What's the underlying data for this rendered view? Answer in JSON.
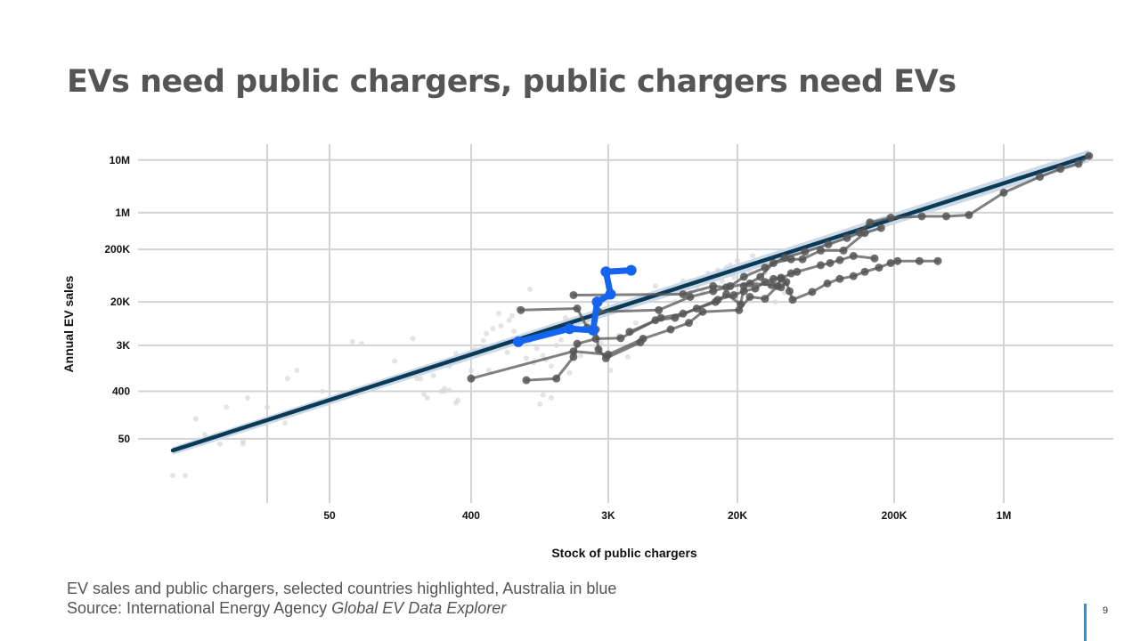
{
  "slide": {
    "title": "EVs need public chargers, public chargers need EVs",
    "caption_line1": "EV sales and public chargers, selected countries highlighted, Australia in blue",
    "source_prefix": "Source: International Energy Agency ",
    "source_title": "Global EV Data Explorer",
    "page_number": "9"
  },
  "colors": {
    "australia": "#1464f0",
    "highlighted": "#555555",
    "background_points": "#d9d9d9",
    "trend_line": "#0b3a57",
    "trend_band": "#c6d6e6",
    "grid": "#d3d3d3",
    "page_bar": "#1a9bd7"
  },
  "chart_data": {
    "type": "scatter",
    "title": "",
    "xlabel": "Stock of public chargers",
    "ylabel": "Annual EV sales",
    "x_scale": "log10",
    "y_scale": "log10",
    "xlim": [
      3,
      5000000
    ],
    "ylim": [
      3,
      20000000
    ],
    "grid": true,
    "legend": "none",
    "x_ticks": [
      {
        "value": 50,
        "label": "50"
      },
      {
        "value": 400,
        "label": "400"
      },
      {
        "value": 3000,
        "label": "3K"
      },
      {
        "value": 20000,
        "label": "20K"
      },
      {
        "value": 200000,
        "label": "200K"
      },
      {
        "value": 1000000,
        "label": "1M"
      }
    ],
    "x_grid_extra": [
      20
    ],
    "y_ticks": [
      {
        "value": 50,
        "label": "50"
      },
      {
        "value": 400,
        "label": "400"
      },
      {
        "value": 3000,
        "label": "3K"
      },
      {
        "value": 20000,
        "label": "20K"
      },
      {
        "value": 200000,
        "label": "200K"
      },
      {
        "value": 1000000,
        "label": "1M"
      },
      {
        "value": 10000000,
        "label": "10M"
      }
    ],
    "trend_line": {
      "x": [
        5,
        3500000
      ],
      "y": [
        30,
        12000000
      ]
    },
    "series": [
      {
        "name": "Australia",
        "role": "australia",
        "points": [
          [
            800,
            3500
          ],
          [
            1700,
            6200
          ],
          [
            2400,
            5800
          ],
          [
            2550,
            20000
          ],
          [
            3100,
            28000
          ],
          [
            2900,
            75000
          ],
          [
            4200,
            80000
          ]
        ]
      },
      {
        "role": "highlighted",
        "points": [
          [
            830,
            14000
          ],
          [
            1900,
            15000
          ],
          [
            2200,
            6500
          ],
          [
            2500,
            6000
          ],
          [
            2600,
            2500
          ],
          [
            2900,
            1700
          ],
          [
            4800,
            3400
          ]
        ]
      },
      {
        "role": "highlighted",
        "points": [
          [
            900,
            650
          ],
          [
            1400,
            700
          ],
          [
            1800,
            1800
          ],
          [
            1900,
            3200
          ],
          [
            2500,
            4000
          ],
          [
            3600,
            4100
          ],
          [
            6500,
            10000
          ],
          [
            9000,
            12000
          ],
          [
            14500,
            20000
          ],
          [
            17000,
            28000
          ],
          [
            21000,
            18000
          ],
          [
            22000,
            40000
          ],
          [
            28000,
            60000
          ],
          [
            34000,
            110000
          ],
          [
            44000,
            130000
          ],
          [
            52000,
            130000
          ],
          [
            68000,
            190000
          ],
          [
            95000,
            190000
          ],
          [
            130000,
            410000
          ],
          [
            165000,
            510000
          ]
        ]
      },
      {
        "role": "highlighted",
        "points": [
          [
            400,
            700
          ],
          [
            1800,
            2300
          ],
          [
            3000,
            2000
          ],
          [
            5000,
            4000
          ],
          [
            7500,
            6000
          ],
          [
            9800,
            8000
          ],
          [
            12000,
            13000
          ],
          [
            20500,
            14000
          ],
          [
            24000,
            25000
          ],
          [
            30000,
            23000
          ],
          [
            36000,
            40000
          ],
          [
            38000,
            55000
          ],
          [
            44000,
            70000
          ],
          [
            48000,
            75000
          ],
          [
            68000,
            100000
          ],
          [
            78000,
            110000
          ],
          [
            90000,
            125000
          ],
          [
            110000,
            150000
          ],
          [
            150000,
            135000
          ]
        ]
      },
      {
        "role": "highlighted",
        "points": [
          [
            2600,
            13000
          ],
          [
            6300,
            14000
          ],
          [
            10000,
            25000
          ],
          [
            14000,
            32000
          ],
          [
            18000,
            40000
          ],
          [
            22000,
            60000
          ],
          [
            30000,
            90000
          ],
          [
            40000,
            140000
          ],
          [
            54000,
            180000
          ],
          [
            76000,
            250000
          ],
          [
            100000,
            330000
          ],
          [
            120000,
            420000
          ],
          [
            140000,
            650000
          ],
          [
            190000,
            800000
          ],
          [
            300000,
            850000
          ],
          [
            430000,
            850000
          ],
          [
            600000,
            900000
          ],
          [
            1000000,
            2400000
          ],
          [
            1700000,
            4800000
          ],
          [
            2300000,
            6800000
          ],
          [
            3000000,
            8500000
          ],
          [
            3500000,
            12000000
          ]
        ]
      },
      {
        "role": "highlighted",
        "points": [
          [
            1800,
            27000
          ],
          [
            9000,
            28000
          ],
          [
            14000,
            40000
          ],
          [
            17000,
            38000
          ],
          [
            24000,
            45000
          ],
          [
            33000,
            42000
          ],
          [
            38000,
            38000
          ],
          [
            41000,
            48000
          ],
          [
            43000,
            32000
          ],
          [
            45000,
            22000
          ],
          [
            60000,
            31000
          ],
          [
            75000,
            45000
          ],
          [
            90000,
            55000
          ],
          [
            110000,
            62000
          ],
          [
            130000,
            75000
          ],
          [
            160000,
            90000
          ],
          [
            190000,
            110000
          ],
          [
            210000,
            120000
          ],
          [
            290000,
            120000
          ],
          [
            380000,
            120000
          ]
        ]
      },
      {
        "role": "highlighted",
        "points": [
          [
            4100,
            5400
          ],
          [
            6000,
            9000
          ],
          [
            8000,
            10000
          ],
          [
            11000,
            15000
          ],
          [
            15000,
            22000
          ],
          [
            19000,
            27000
          ],
          [
            22000,
            32000
          ],
          [
            26000,
            36000
          ],
          [
            30000,
            48000
          ],
          [
            34000,
            55000
          ],
          [
            38000,
            58000
          ]
        ]
      }
    ],
    "background_points": [
      [
        5,
        10
      ],
      [
        6,
        10
      ],
      [
        7,
        120
      ],
      [
        8,
        60
      ],
      [
        10,
        40
      ],
      [
        11,
        200
      ],
      [
        14,
        40
      ],
      [
        14,
        45
      ],
      [
        15,
        300
      ],
      [
        20,
        200
      ],
      [
        26,
        100
      ],
      [
        27,
        700
      ],
      [
        31,
        1000
      ],
      [
        45,
        400
      ],
      [
        70,
        3500
      ],
      [
        80,
        3200
      ],
      [
        130,
        1500
      ],
      [
        170,
        4000
      ],
      [
        180,
        700
      ],
      [
        190,
        700
      ],
      [
        200,
        350
      ],
      [
        210,
        300
      ],
      [
        230,
        800
      ],
      [
        260,
        400
      ],
      [
        270,
        400
      ],
      [
        270,
        450
      ],
      [
        290,
        420
      ],
      [
        290,
        1200
      ],
      [
        300,
        1600
      ],
      [
        320,
        2100
      ],
      [
        320,
        240
      ],
      [
        330,
        270
      ],
      [
        400,
        1000
      ],
      [
        420,
        2500
      ],
      [
        480,
        3700
      ],
      [
        500,
        5000
      ],
      [
        520,
        1000
      ],
      [
        550,
        6200
      ],
      [
        600,
        12000
      ],
      [
        620,
        7000
      ],
      [
        680,
        2200
      ],
      [
        700,
        9000
      ],
      [
        730,
        11000
      ],
      [
        750,
        5500
      ],
      [
        800,
        15000
      ],
      [
        850,
        3300
      ],
      [
        900,
        1700
      ],
      [
        950,
        35000
      ],
      [
        950,
        3600
      ],
      [
        1000,
        1400
      ],
      [
        1050,
        2600
      ],
      [
        1100,
        230
      ],
      [
        1150,
        1900
      ],
      [
        1150,
        340
      ],
      [
        1200,
        1600
      ],
      [
        1300,
        300
      ],
      [
        1300,
        1200
      ],
      [
        1400,
        3000
      ],
      [
        1500,
        3800
      ],
      [
        1600,
        10000
      ],
      [
        1700,
        900
      ],
      [
        2000,
        1900
      ],
      [
        2200,
        7500
      ],
      [
        2300,
        6000
      ],
      [
        2500,
        2800
      ],
      [
        2700,
        3300
      ],
      [
        3100,
        1000
      ],
      [
        3500,
        4600
      ],
      [
        4000,
        1800
      ],
      [
        4500,
        8000
      ],
      [
        5000,
        4000
      ],
      [
        6000,
        40000
      ],
      [
        7000,
        35000
      ],
      [
        8000,
        20000
      ],
      [
        9000,
        50000
      ],
      [
        10000,
        30000
      ],
      [
        11000,
        40000
      ],
      [
        12000,
        30000
      ],
      [
        13000,
        70000
      ],
      [
        14000,
        60000
      ],
      [
        15000,
        80000
      ],
      [
        16000,
        50000
      ],
      [
        17000,
        90000
      ],
      [
        18000,
        100000
      ],
      [
        19000,
        60000
      ],
      [
        20000,
        120000
      ],
      [
        22000,
        70000
      ],
      [
        24000,
        80000
      ],
      [
        25000,
        150000
      ],
      [
        26000,
        50000
      ],
      [
        28000,
        120000
      ],
      [
        30000,
        70000
      ],
      [
        32000,
        40000
      ],
      [
        35000,
        20000
      ],
      [
        40000,
        30000
      ]
    ]
  }
}
